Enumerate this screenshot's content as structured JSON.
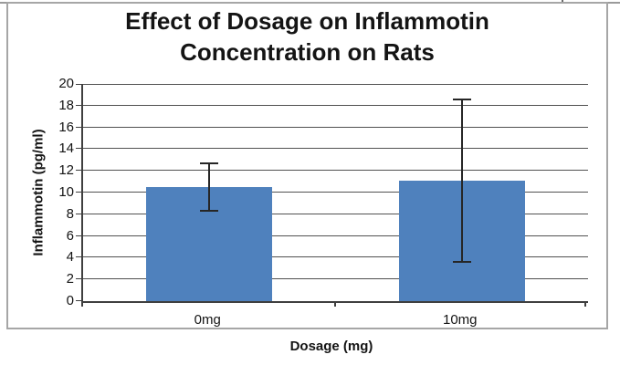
{
  "frame": {
    "outer_border_color": "#a6a6a6",
    "top_rule_color": "#9a9a9a",
    "background": "#ffffff"
  },
  "chart_data": {
    "type": "bar",
    "title": "Effect of Dosage on Inflammotin Concentration on Rats",
    "title_lines": [
      "Effect of Dosage on Inflammotin",
      "Concentration on Rats"
    ],
    "xlabel": "Dosage (mg)",
    "ylabel": "Inflammotin (pg/ml)",
    "categories": [
      "0mg",
      "10mg"
    ],
    "values": [
      10.5,
      11.1
    ],
    "error_bars": [
      2.2,
      7.5
    ],
    "ylim": [
      0,
      20
    ],
    "yticks": [
      0,
      2,
      4,
      6,
      8,
      10,
      12,
      14,
      16,
      18,
      20
    ],
    "grid": "horizontal",
    "legend": "none",
    "bar_color": "#4f81bd",
    "error_bar_color": "#262626",
    "gridline_color": "#515151",
    "axis_color": "#3f3f3f",
    "text_color": "#141414"
  }
}
